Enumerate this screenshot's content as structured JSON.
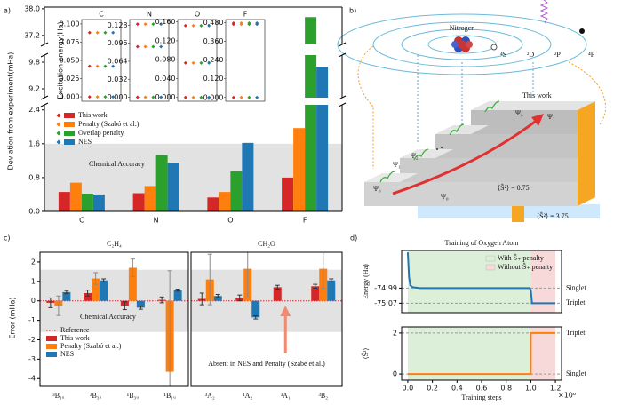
{
  "chart_data": [
    {
      "type": "broken_bar",
      "panel_label": "a)",
      "ylabel": "Deviation from experiment(mHa)",
      "categories": [
        "C",
        "N",
        "O",
        "F"
      ],
      "series": [
        {
          "name": "This work",
          "color": "#d62728",
          "values": [
            0.46,
            0.43,
            0.33,
            0.8
          ]
        },
        {
          "name": "Penalty (Szabó et al.)",
          "color": "#ff7f0e",
          "values": [
            0.68,
            0.6,
            0.46,
            1.97
          ]
        },
        {
          "name": "Overlap penalty",
          "color": "#2ca02c",
          "values": [
            0.42,
            1.33,
            0.95,
            37.75
          ]
        },
        {
          "name": "NES",
          "color": "#1f77b4",
          "values": [
            0.4,
            1.15,
            1.62,
            9.7
          ]
        }
      ],
      "axis_segments": [
        {
          "ylim": [
            0,
            2.52
          ],
          "yticks": [
            {
              "value": 0,
              "label": "0.0"
            },
            0.8,
            1.6,
            2.4
          ]
        },
        {
          "ylim": [
            9.0,
            9.96
          ],
          "yticks": [
            9.2,
            9.8
          ]
        },
        {
          "ylim": [
            36.93,
            38.05
          ],
          "yticks": [
            37.2,
            {
              "value": 38,
              "label": "38.0"
            }
          ]
        }
      ],
      "band": [
        0,
        1.6
      ],
      "band_label": "Chemical Accuracy",
      "inset_ylabel": "Excitation energy(Ha)",
      "insets": [
        {
          "title": "C",
          "ylim": [
            -0.006,
            0.106
          ],
          "yticks": [
            {
              "value": 0,
              "label": "0.000"
            },
            {
              "value": 0.025,
              "label": "0.025"
            },
            {
              "value": 0.05,
              "label": "0.050"
            },
            {
              "value": 0.075,
              "label": "0.075"
            },
            {
              "value": 0.1,
              "label": "0.100"
            }
          ],
          "levels": [
            0,
            0.042,
            0.088
          ]
        },
        {
          "title": "N",
          "ylim": [
            -0.007,
            0.138
          ],
          "yticks": [
            {
              "value": 0,
              "label": "0.000"
            },
            {
              "value": 0.032,
              "label": "0.032"
            },
            {
              "value": 0.064,
              "label": "0.064"
            },
            {
              "value": 0.096,
              "label": "0.096"
            },
            {
              "value": 0.128,
              "label": "0.128"
            }
          ],
          "levels": [
            0,
            0.09,
            0.13
          ]
        },
        {
          "title": "O",
          "ylim": [
            -0.008,
            0.165
          ],
          "yticks": [
            {
              "value": 0,
              "label": "0.000"
            },
            {
              "value": 0.04,
              "label": "0.040"
            },
            {
              "value": 0.08,
              "label": "0.080"
            },
            {
              "value": 0.12,
              "label": "0.120"
            },
            {
              "value": 0.16,
              "label": "0.160"
            }
          ],
          "levels": [
            0,
            0.073,
            0.152
          ]
        },
        {
          "title": "F",
          "ylim": [
            -0.024,
            0.5
          ],
          "yticks": [
            {
              "value": 0,
              "label": "0.000"
            },
            {
              "value": 0.12,
              "label": "0.120"
            },
            {
              "value": 0.24,
              "label": "0.240"
            },
            {
              "value": 0.36,
              "label": "0.360"
            },
            {
              "value": 0.48,
              "label": "0.480"
            }
          ],
          "levels": [
            0,
            0.47,
            0.477
          ]
        }
      ]
    },
    {
      "type": "error_bar",
      "panel_label": "c)",
      "title": "C₂H₄",
      "ylabel": "Error (mHa)",
      "categories": [
        "³B₁ᵤ",
        "³B₃ᵤ",
        "¹B₃ᵤ",
        "¹B₁ᵤ"
      ],
      "series": [
        {
          "name": "This work",
          "color": "#d62728",
          "values": [
            -0.1,
            0.4,
            -0.25,
            0.05
          ],
          "errors": [
            0.25,
            0.15,
            0.2,
            0.15
          ]
        },
        {
          "name": "Penalty (Szabó et al.)",
          "color": "#ff7f0e",
          "values": [
            -0.25,
            1.15,
            1.7,
            -3.65
          ],
          "errors": [
            0.5,
            0.3,
            0.45,
            5.2
          ]
        },
        {
          "name": "NES",
          "color": "#1f77b4",
          "values": [
            0.45,
            1.05,
            -0.35,
            0.55
          ],
          "errors": [
            0.08,
            0.08,
            0.08,
            0.05
          ]
        }
      ],
      "reference": {
        "name": "Reference",
        "color": "#d62728",
        "value": 0
      },
      "ylim": [
        -4.4,
        2.5
      ],
      "yticks": [
        -4,
        -3,
        -2,
        -1,
        0,
        1,
        2
      ],
      "band": [
        -1.6,
        1.6
      ],
      "band_label": "Chemical Accuracy"
    },
    {
      "type": "error_bar",
      "title": "CH₂O",
      "categories": [
        "³A₂",
        "¹A₂",
        "³A₁",
        "³B₂"
      ],
      "series": [
        {
          "color": "#d62728",
          "values": [
            0.1,
            0.15,
            0.7,
            0.75
          ],
          "errors": [
            0.3,
            0.15,
            0.1,
            0.1
          ]
        },
        {
          "color": "#ff7f0e",
          "values": [
            1.1,
            1.65,
            null,
            1.65
          ],
          "errors": [
            1.3,
            1.5,
            null,
            1.0
          ]
        },
        {
          "color": "#1f77b4",
          "values": [
            0.25,
            -0.85,
            null,
            1.05
          ],
          "errors": [
            0.08,
            0.08,
            null,
            0.08
          ]
        }
      ],
      "reference": {
        "color": "#d62728",
        "value": 0
      },
      "ylim": [
        -4.4,
        2.5
      ],
      "band": [
        -1.6,
        1.6
      ],
      "annotation": "Absent in NES and Penalty (Szabé et al.)"
    },
    {
      "type": "line",
      "panel_label": "d)",
      "title": "Training of Oxygen Atom",
      "ylabel": "Energy (Ha)",
      "x": [
        0,
        0.01,
        0.02,
        0.04,
        0.1,
        0.5,
        0.99,
        1.0,
        1.01,
        1.2
      ],
      "values": [
        -74.8,
        -74.93,
        -74.975,
        -74.985,
        -74.99,
        -74.99,
        -74.99,
        -75.0,
        -75.07,
        -75.07
      ],
      "color": "#1f77b4",
      "xlim": [
        -0.05,
        1.25
      ],
      "ylim": [
        -75.12,
        -74.79
      ],
      "yticks": [
        -74.99,
        -75.07
      ],
      "hlines": [
        {
          "value": -74.99,
          "label": "Singlet"
        },
        {
          "value": -75.07,
          "label": "Triplet"
        }
      ],
      "regions": [
        {
          "name": "With Ŝ₊ penalty",
          "color": "#dcefd8",
          "range": [
            0,
            1.0
          ]
        },
        {
          "name": "Without Ŝ₊ penalty",
          "color": "#f8d9d9",
          "range": [
            1.0,
            1.2
          ]
        }
      ],
      "legend": "upper right"
    },
    {
      "type": "line",
      "ylabel": "⟨Ŝ²⟩",
      "xlabel": "Training steps",
      "x_multiplier": "×10⁶",
      "x": [
        0,
        1.0,
        1.0,
        1.2
      ],
      "values": [
        0,
        0,
        2,
        2
      ],
      "color": "#ff7f0e",
      "xlim": [
        -0.05,
        1.25
      ],
      "ylim": [
        -0.3,
        2.3
      ],
      "yticks": [
        0,
        2
      ],
      "xticks": [
        {
          "value": 0,
          "label": "0.0"
        },
        0.2,
        0.4,
        0.6,
        0.8,
        {
          "value": 1,
          "label": "1.0"
        },
        1.2
      ],
      "hlines": [
        {
          "value": 0,
          "label": "Singlet"
        },
        {
          "value": 2,
          "label": "Triplet"
        }
      ],
      "regions": [
        {
          "color": "#dcefd8",
          "range": [
            0,
            1.0
          ]
        },
        {
          "color": "#f8d9d9",
          "range": [
            1.0,
            1.2
          ]
        }
      ]
    }
  ],
  "diagram": {
    "panel_label": "b)",
    "atom": "Nitrogen",
    "levels": [
      "⁴S",
      "²D",
      "²P",
      "⁴P"
    ],
    "this_work": "This work",
    "psi": [
      "Ψ₀",
      "Ψ₁",
      "Ψ₂",
      "Ψ₉",
      "Ψ₁",
      "Ψ₀"
    ],
    "s2_doublet": "⟨Ŝ²⟩ = 0.75",
    "s2_quartet": "⟨Ŝ²⟩ = 3.75"
  }
}
